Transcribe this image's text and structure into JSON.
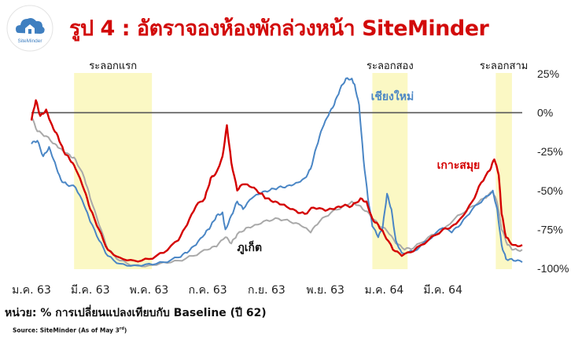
{
  "header": {
    "title": "รูป 4 : อัตราจองห้องพักล่วงหน้า SiteMinder",
    "logo_text": "SiteMinder"
  },
  "colors": {
    "title": "#d20a0a",
    "highlight": "#fbf8c4",
    "chiang_mai": "#4a86c5",
    "koh_samui": "#d40000",
    "phuket": "#a9a9a9",
    "logo_blue": "#3f7fc0"
  },
  "chart_data": {
    "type": "line",
    "title": "รูป 4 : อัตราจองห้องพักล่วงหน้า SiteMinder",
    "xlabel": "",
    "ylabel": "",
    "ylim": [
      -100,
      25
    ],
    "yticks": [
      "25%",
      "0%",
      "-25%",
      "-50%",
      "-75%",
      "-100%"
    ],
    "ytick_values": [
      25,
      0,
      -25,
      -50,
      -75,
      -100
    ],
    "xticks": [
      "ม.ค. 63",
      "มี.ค. 63",
      "พ.ค. 63",
      "ก.ค. 63",
      "ก.ย. 63",
      "พ.ย. 63",
      "ม.ค. 64",
      "มี.ค. 64"
    ],
    "xtick_months": [
      0,
      2,
      4,
      6,
      8,
      10,
      12,
      14
    ],
    "x_unit": "months since Jan 2020",
    "grid": false,
    "reference_line": 0,
    "shaded_periods": [
      {
        "label": "ระลอกแรก",
        "start": 1.45,
        "end": 4.1
      },
      {
        "label": "ระลอกสอง",
        "start": 11.6,
        "end": 12.8
      },
      {
        "label": "ระลอกสาม",
        "start": 15.8,
        "end": 16.35
      }
    ],
    "series": [
      {
        "name": "เชียงใหม่",
        "color": "#4a86c5",
        "label_pos": [
          11.55,
          8
        ],
        "points": [
          [
            0,
            -20
          ],
          [
            0.2,
            -18
          ],
          [
            0.4,
            -28
          ],
          [
            0.6,
            -22
          ],
          [
            0.8,
            -32
          ],
          [
            1.0,
            -43
          ],
          [
            1.2,
            -46
          ],
          [
            1.5,
            -48
          ],
          [
            1.8,
            -60
          ],
          [
            2.0,
            -70
          ],
          [
            2.3,
            -82
          ],
          [
            2.6,
            -92
          ],
          [
            3.0,
            -97
          ],
          [
            3.5,
            -98
          ],
          [
            4.0,
            -97
          ],
          [
            4.5,
            -96
          ],
          [
            5.0,
            -93
          ],
          [
            5.3,
            -90
          ],
          [
            5.6,
            -85
          ],
          [
            5.9,
            -78
          ],
          [
            6.1,
            -73
          ],
          [
            6.3,
            -66
          ],
          [
            6.5,
            -64
          ],
          [
            6.6,
            -75
          ],
          [
            6.8,
            -66
          ],
          [
            7.0,
            -57
          ],
          [
            7.2,
            -62
          ],
          [
            7.5,
            -55
          ],
          [
            7.8,
            -52
          ],
          [
            8.1,
            -50
          ],
          [
            8.4,
            -48
          ],
          [
            8.7,
            -47
          ],
          [
            9.0,
            -45
          ],
          [
            9.3,
            -42
          ],
          [
            9.5,
            -36
          ],
          [
            9.7,
            -22
          ],
          [
            9.9,
            -10
          ],
          [
            10.1,
            -2
          ],
          [
            10.3,
            5
          ],
          [
            10.5,
            15
          ],
          [
            10.7,
            22
          ],
          [
            10.9,
            22
          ],
          [
            11.0,
            18
          ],
          [
            11.15,
            5
          ],
          [
            11.3,
            -30
          ],
          [
            11.45,
            -55
          ],
          [
            11.6,
            -73
          ],
          [
            11.8,
            -80
          ],
          [
            11.95,
            -74
          ],
          [
            12.1,
            -52
          ],
          [
            12.25,
            -62
          ],
          [
            12.4,
            -82
          ],
          [
            12.6,
            -90
          ],
          [
            13.0,
            -89
          ],
          [
            13.5,
            -82
          ],
          [
            14.0,
            -74
          ],
          [
            14.3,
            -77
          ],
          [
            14.6,
            -72
          ],
          [
            15.0,
            -62
          ],
          [
            15.4,
            -55
          ],
          [
            15.7,
            -50
          ],
          [
            15.85,
            -62
          ],
          [
            16.0,
            -85
          ],
          [
            16.15,
            -94
          ],
          [
            16.4,
            -95
          ],
          [
            16.7,
            -96
          ]
        ]
      },
      {
        "name": "เกาะสมุย",
        "color": "#d40000",
        "label_pos": [
          13.8,
          -36
        ],
        "points": [
          [
            0,
            -5
          ],
          [
            0.15,
            8
          ],
          [
            0.3,
            -2
          ],
          [
            0.5,
            2
          ],
          [
            0.7,
            -8
          ],
          [
            0.9,
            -15
          ],
          [
            1.1,
            -25
          ],
          [
            1.3,
            -30
          ],
          [
            1.5,
            -36
          ],
          [
            1.8,
            -50
          ],
          [
            2.0,
            -62
          ],
          [
            2.3,
            -75
          ],
          [
            2.6,
            -88
          ],
          [
            3.0,
            -93
          ],
          [
            3.5,
            -95
          ],
          [
            4.0,
            -94
          ],
          [
            4.5,
            -90
          ],
          [
            5.0,
            -82
          ],
          [
            5.3,
            -72
          ],
          [
            5.6,
            -60
          ],
          [
            5.9,
            -55
          ],
          [
            6.1,
            -42
          ],
          [
            6.3,
            -38
          ],
          [
            6.5,
            -28
          ],
          [
            6.65,
            -8
          ],
          [
            6.8,
            -32
          ],
          [
            7.0,
            -50
          ],
          [
            7.2,
            -46
          ],
          [
            7.5,
            -48
          ],
          [
            7.8,
            -52
          ],
          [
            8.0,
            -55
          ],
          [
            8.3,
            -57
          ],
          [
            8.6,
            -59
          ],
          [
            9.0,
            -63
          ],
          [
            9.3,
            -65
          ],
          [
            9.6,
            -61
          ],
          [
            10.0,
            -63
          ],
          [
            10.3,
            -62
          ],
          [
            10.6,
            -60
          ],
          [
            10.9,
            -60
          ],
          [
            11.2,
            -55
          ],
          [
            11.4,
            -57
          ],
          [
            11.6,
            -68
          ],
          [
            11.8,
            -72
          ],
          [
            12.0,
            -78
          ],
          [
            12.3,
            -88
          ],
          [
            12.6,
            -92
          ],
          [
            13.0,
            -89
          ],
          [
            13.5,
            -82
          ],
          [
            14.0,
            -75
          ],
          [
            14.3,
            -73
          ],
          [
            14.6,
            -68
          ],
          [
            15.0,
            -57
          ],
          [
            15.3,
            -45
          ],
          [
            15.6,
            -37
          ],
          [
            15.75,
            -30
          ],
          [
            15.9,
            -40
          ],
          [
            16.0,
            -65
          ],
          [
            16.15,
            -80
          ],
          [
            16.4,
            -85
          ],
          [
            16.7,
            -85
          ]
        ]
      },
      {
        "name": "ภูเก็ต",
        "color": "#a9a9a9",
        "label_pos": [
          7.0,
          -89
        ],
        "points": [
          [
            0,
            -3
          ],
          [
            0.2,
            -12
          ],
          [
            0.5,
            -15
          ],
          [
            0.8,
            -20
          ],
          [
            1.0,
            -23
          ],
          [
            1.3,
            -27
          ],
          [
            1.5,
            -30
          ],
          [
            1.8,
            -42
          ],
          [
            2.0,
            -55
          ],
          [
            2.3,
            -72
          ],
          [
            2.6,
            -88
          ],
          [
            3.0,
            -95
          ],
          [
            3.5,
            -98
          ],
          [
            4.0,
            -98
          ],
          [
            4.5,
            -96
          ],
          [
            5.0,
            -95
          ],
          [
            5.5,
            -92
          ],
          [
            6.0,
            -88
          ],
          [
            6.3,
            -86
          ],
          [
            6.6,
            -80
          ],
          [
            6.8,
            -84
          ],
          [
            7.0,
            -78
          ],
          [
            7.3,
            -74
          ],
          [
            7.6,
            -72
          ],
          [
            8.0,
            -69
          ],
          [
            8.4,
            -68
          ],
          [
            8.8,
            -70
          ],
          [
            9.2,
            -73
          ],
          [
            9.5,
            -77
          ],
          [
            9.8,
            -70
          ],
          [
            10.2,
            -64
          ],
          [
            10.6,
            -60
          ],
          [
            10.9,
            -57
          ],
          [
            11.2,
            -60
          ],
          [
            11.5,
            -65
          ],
          [
            11.8,
            -72
          ],
          [
            12.1,
            -76
          ],
          [
            12.4,
            -84
          ],
          [
            12.7,
            -88
          ],
          [
            13.0,
            -87
          ],
          [
            13.5,
            -80
          ],
          [
            14.0,
            -75
          ],
          [
            14.5,
            -66
          ],
          [
            15.0,
            -60
          ],
          [
            15.4,
            -55
          ],
          [
            15.7,
            -51
          ],
          [
            15.85,
            -58
          ],
          [
            16.0,
            -75
          ],
          [
            16.2,
            -85
          ],
          [
            16.4,
            -88
          ],
          [
            16.7,
            -88
          ]
        ]
      }
    ]
  },
  "notes": {
    "unit": "หน่วย: % การเปลี่ยนแปลงเทียบกับ Baseline (ปี 62)",
    "source": "Source: SiteMinder  (As of May 3",
    "source_sup": "rd",
    "source_close": ")"
  }
}
